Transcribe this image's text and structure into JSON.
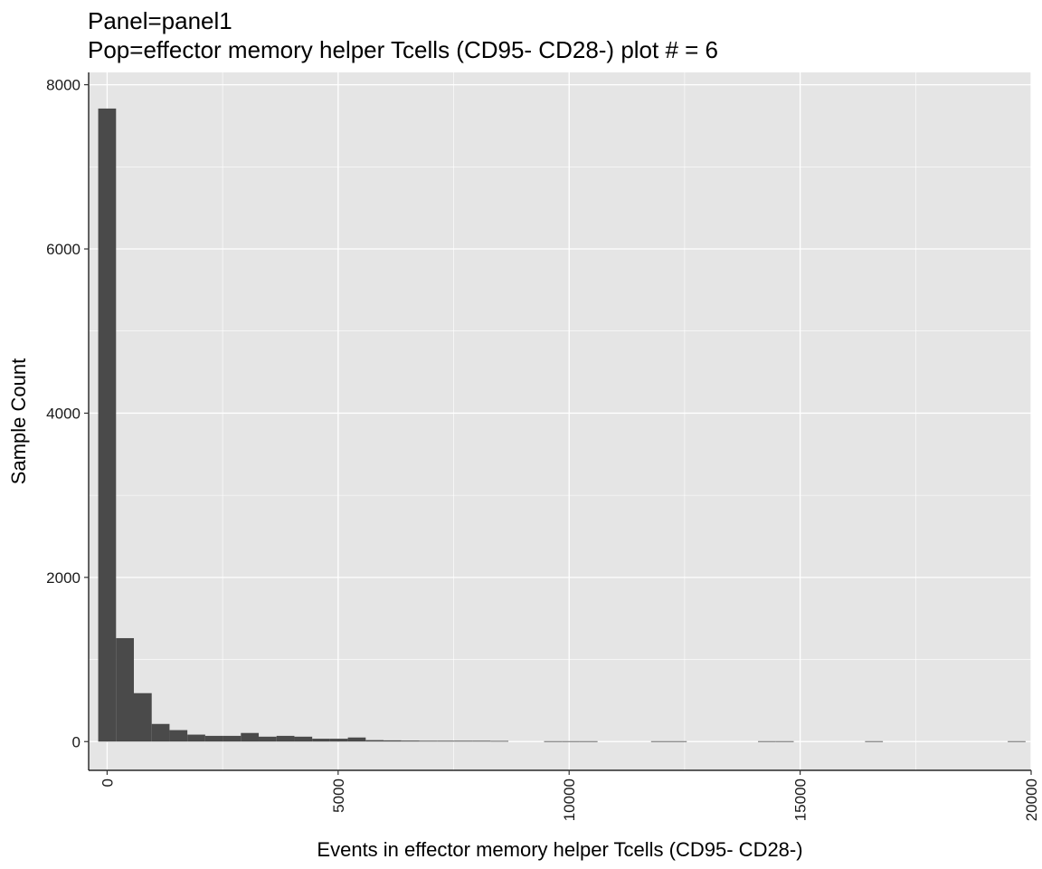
{
  "chart_data": {
    "type": "bar",
    "title": "Panel=panel1",
    "subtitle": "Pop=effector memory helper Tcells (CD95- CD28-) plot # = 6",
    "xlabel": "Events in effector memory helper Tcells (CD95- CD28-)",
    "ylabel": "Sample Count",
    "xlim": [
      -400,
      20000
    ],
    "ylim": [
      -350,
      8150
    ],
    "x_ticks": [
      0,
      5000,
      10000,
      15000,
      20000
    ],
    "x_tick_labels": [
      "0",
      "5000",
      "10000",
      "15000",
      "20000"
    ],
    "y_ticks": [
      0,
      2000,
      4000,
      6000,
      8000
    ],
    "y_tick_labels": [
      "0",
      "2000",
      "4000",
      "6000",
      "8000"
    ],
    "bin_width": 386,
    "bin_start": -193,
    "values": [
      7710,
      1260,
      590,
      215,
      140,
      85,
      70,
      70,
      105,
      60,
      70,
      60,
      35,
      35,
      50,
      18,
      15,
      12,
      10,
      10,
      10,
      10,
      8,
      0,
      0,
      5,
      5,
      5,
      0,
      0,
      0,
      5,
      5,
      0,
      0,
      0,
      0,
      5,
      5,
      0,
      0,
      0,
      0,
      5,
      0,
      0,
      0,
      0,
      0,
      0,
      0,
      5,
      0,
      0,
      0,
      5,
      5,
      0,
      0,
      0,
      0,
      0,
      0,
      0,
      0,
      0,
      0,
      0,
      0,
      0,
      0
    ],
    "grid": true,
    "panel_background": "#e5e5e5",
    "grid_color": "#ffffff",
    "bar_color": "#4a4a4a",
    "axis_color": "#000000"
  }
}
